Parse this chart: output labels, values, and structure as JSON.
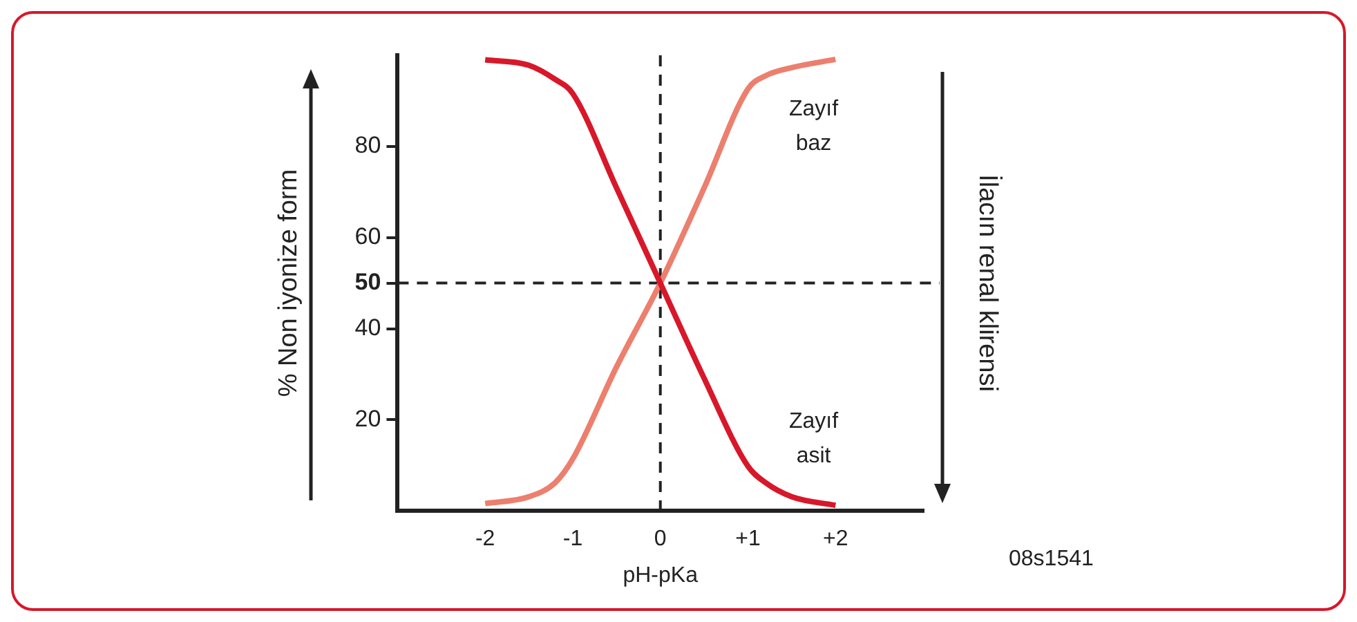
{
  "chart_data": {
    "type": "line",
    "xlabel": "pH-pKa",
    "ylabel": "% Non iyonize form",
    "y2label": "İlacın renal klirensi",
    "xlim": [
      -3,
      3
    ],
    "xticks": [
      {
        "value": -2,
        "label": "-2"
      },
      {
        "value": -1,
        "label": "-1"
      },
      0,
      {
        "value": 1,
        "label": "+1"
      },
      {
        "value": 2,
        "label": "+2"
      }
    ],
    "ylim": [
      0,
      100
    ],
    "yticks": [
      20,
      40,
      50,
      60,
      80
    ],
    "series": [
      {
        "name": "Zayıf asit",
        "color": "#d7182a",
        "x": [
          -2,
          -1.5,
          -1.2,
          -1,
          -0.5,
          0,
          0.5,
          1,
          1.2,
          1.5,
          2
        ],
        "values": [
          99,
          97.8,
          94.7,
          91.6,
          70.9,
          50,
          29.1,
          9.8,
          6.2,
          3.1,
          1.2
        ]
      },
      {
        "name": "Zayıf baz",
        "color": "#ec7f6d",
        "x": [
          -2,
          -1.5,
          -1.2,
          -1,
          -0.5,
          0,
          0.5,
          1,
          1.2,
          1.5,
          2
        ],
        "values": [
          1.6,
          3.1,
          6.2,
          11.4,
          31.6,
          50,
          70.9,
          92.6,
          95.5,
          97.3,
          99.1
        ]
      }
    ],
    "ref_lines": [
      {
        "axis": "x",
        "value": 0,
        "line_style": "dashed"
      },
      {
        "axis": "y",
        "value": 50,
        "line_style": "dashed"
      }
    ],
    "annotations": [
      "08s1541"
    ],
    "legend": false,
    "marker": "none",
    "line_style": "solid"
  }
}
